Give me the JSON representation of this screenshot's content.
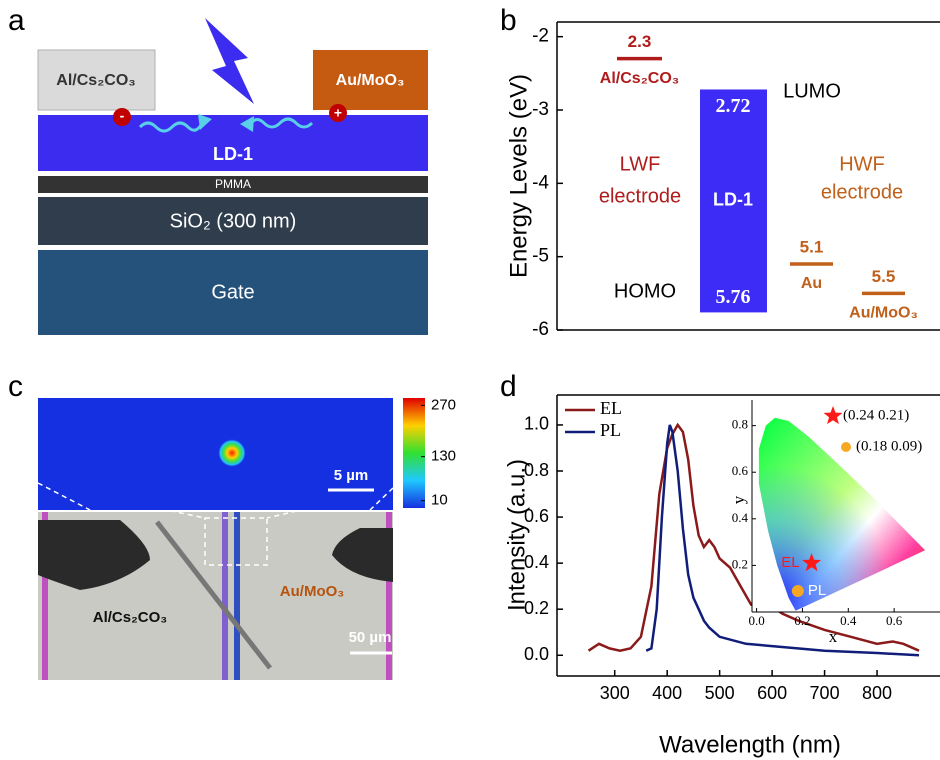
{
  "panel_labels": [
    "a",
    "b",
    "c",
    "d"
  ],
  "device": {
    "left_electrode": "Al/Cs₂CO₃",
    "right_electrode": "Au/MoO₃",
    "charges": [
      "-",
      "+"
    ],
    "layers": [
      "LD-1",
      "PMMA",
      "SiO₂ (300 nm)",
      "Gate"
    ]
  },
  "micrograph": {
    "colorbar": {
      "lim": [
        -10,
        290
      ],
      "ticks": [
        270,
        130,
        10
      ]
    },
    "scale_bars": [
      "5 µm",
      "50 µm"
    ],
    "labels": [
      "Au/MoO₃",
      "Al/Cs₂CO₃"
    ]
  },
  "chart_data": [
    {
      "type": "levels",
      "ylabel": "Energy Levels (eV)",
      "ylim": [
        -6,
        -1.8
      ],
      "yticks": [
        -2,
        -3,
        -4,
        -5,
        -6
      ],
      "levels": [
        {
          "name": "Al/Cs₂CO₃",
          "value": -2.3,
          "value_label": "2.3",
          "color": "#b01c1c"
        },
        {
          "name": "Au",
          "value": -5.1,
          "value_label": "5.1",
          "color": "#c0601a"
        },
        {
          "name": "Au/MoO₃",
          "value": -5.5,
          "value_label": "5.5",
          "color": "#c0601a"
        }
      ],
      "bar": {
        "name": "LD-1",
        "values": [
          -2.72,
          -5.76
        ],
        "value_labels": [
          "2.72",
          "5.76"
        ],
        "color": "#3d2cf5"
      },
      "annotations": [
        {
          "text": "LUMO",
          "color": "#000000"
        },
        {
          "text": "HOMO",
          "color": "#000000"
        },
        {
          "text": "LWF",
          "color": "#b01c1c"
        },
        {
          "text": "electrode",
          "color": "#b01c1c"
        },
        {
          "text": "HWF",
          "color": "#c0601a"
        },
        {
          "text": "electrode",
          "color": "#c0601a"
        }
      ]
    },
    {
      "type": "line",
      "xlabel": "Wavelength (nm)",
      "ylabel": "Intensity (a.u.)",
      "xlim": [
        190,
        920
      ],
      "xticks": [
        300,
        400,
        500,
        600,
        700,
        800
      ],
      "ylim": [
        -0.09,
        1.13
      ],
      "yticks": [
        {
          "value": 0,
          "label": "0.0"
        },
        {
          "value": 0.2,
          "label": "0.2"
        },
        {
          "value": 0.4,
          "label": "0.4"
        },
        {
          "value": 0.6,
          "label": "0.6"
        },
        {
          "value": 0.8,
          "label": "0.8"
        },
        {
          "value": 1,
          "label": "1.0"
        }
      ],
      "legend": "upper left",
      "series": [
        {
          "name": "EL",
          "color": "#8b1a1a",
          "x": [
            250,
            270,
            290,
            310,
            330,
            350,
            370,
            385,
            400,
            410,
            420,
            430,
            440,
            450,
            460,
            470,
            480,
            490,
            500,
            520,
            540,
            560,
            580,
            600,
            620,
            650,
            700,
            750,
            800,
            830,
            850,
            880
          ],
          "values": [
            0.02,
            0.05,
            0.03,
            0.02,
            0.03,
            0.08,
            0.3,
            0.7,
            0.9,
            0.96,
            1.0,
            0.97,
            0.85,
            0.65,
            0.52,
            0.47,
            0.5,
            0.47,
            0.42,
            0.38,
            0.3,
            0.22,
            0.2,
            0.21,
            0.18,
            0.15,
            0.11,
            0.08,
            0.05,
            0.06,
            0.05,
            0.02
          ]
        },
        {
          "name": "PL",
          "color": "#101e7a",
          "x": [
            360,
            370,
            380,
            390,
            400,
            405,
            410,
            420,
            430,
            440,
            450,
            460,
            470,
            480,
            500,
            550,
            600,
            700,
            800,
            880
          ],
          "values": [
            0.02,
            0.03,
            0.2,
            0.6,
            0.92,
            1.0,
            0.97,
            0.8,
            0.55,
            0.35,
            0.25,
            0.2,
            0.15,
            0.12,
            0.08,
            0.05,
            0.04,
            0.02,
            0.01,
            0.0
          ]
        }
      ]
    },
    {
      "type": "scatter",
      "xlabel": "x",
      "ylabel": "y",
      "xlim": [
        -0.02,
        0.8
      ],
      "xticks": [
        {
          "value": 0,
          "label": "0.0"
        },
        {
          "value": 0.2,
          "label": "0.2"
        },
        {
          "value": 0.4,
          "label": "0.4"
        },
        {
          "value": 0.6,
          "label": "0.6"
        }
      ],
      "ylim": [
        0,
        0.91
      ],
      "yticks": [
        {
          "value": 0.2,
          "label": "0.2"
        },
        {
          "value": 0.4,
          "label": "0.4"
        },
        {
          "value": 0.6,
          "label": "0.6"
        },
        {
          "value": 0.8,
          "label": "0.8"
        }
      ],
      "series": [
        {
          "name": "EL",
          "color": "#ff1a1a",
          "marker": "star",
          "x": [
            0.24
          ],
          "values": [
            0.21
          ],
          "label": "(0.24 0.21)"
        },
        {
          "name": "PL",
          "color": "#f7a823",
          "marker": "circle",
          "x": [
            0.18
          ],
          "values": [
            0.09
          ],
          "label": "(0.18 0.09)"
        }
      ]
    }
  ]
}
